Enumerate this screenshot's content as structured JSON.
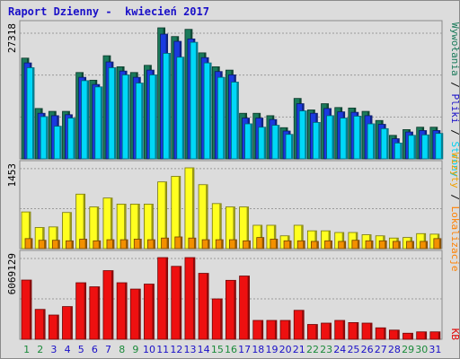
{
  "title": "Raport Dzienny -  kwiecień 2017",
  "chart_data": {
    "type": "bar",
    "categories": [
      "1",
      "2",
      "3",
      "4",
      "5",
      "6",
      "7",
      "8",
      "9",
      "10",
      "11",
      "12",
      "13",
      "14",
      "15",
      "16",
      "17",
      "18",
      "19",
      "20",
      "21",
      "22",
      "23",
      "24",
      "25",
      "26",
      "27",
      "28",
      "29",
      "30",
      "31"
    ],
    "weekend_days": [
      "1",
      "2",
      "8",
      "9",
      "15",
      "16",
      "22",
      "23",
      "29",
      "30"
    ],
    "axis_max_labels": {
      "visits": "27318",
      "locations": "1453",
      "kb": "6069129"
    },
    "side_legend": [
      {
        "name": "Wywołania",
        "color": "#1a7a5a"
      },
      {
        "name": "Pliki",
        "color": "#1a10c8"
      },
      {
        "name": "Strony",
        "color": "#00d0f0"
      },
      {
        "name": "Wizyty",
        "color": "#f0a000"
      },
      {
        "name": "Lokalizacje",
        "color": "#ff8000"
      },
      {
        "name": "KB",
        "color": "#e00000"
      }
    ],
    "colors": {
      "hits": "#1a7a5a",
      "files": "#1a3ae0",
      "pages": "#00d8f8",
      "visits": "#ffff20",
      "locations": "#f39000",
      "kb": "#ee1010",
      "day_weekday": "#1a10c8",
      "day_weekend": "#1a8a3a",
      "grid": "#9a9a9a"
    },
    "panels": [
      {
        "name": "hits-files-pages",
        "ymax": 27318,
        "series": [
          {
            "name": "Wywołania",
            "values": [
              21000,
              10500,
              9900,
              9900,
              18000,
              16400,
              21500,
              19200,
              18000,
              19500,
              27318,
              25500,
              27000,
              22100,
              19200,
              18500,
              9500,
              9500,
              9000,
              6500,
              12600,
              10200,
              11500,
              10700,
              10600,
              9900,
              8000,
              4900,
              6100,
              6600,
              6600
            ]
          },
          {
            "name": "Pliki",
            "values": [
              20000,
              9500,
              9000,
              9200,
              17000,
              15500,
              20200,
              18300,
              17000,
              18500,
              26000,
              24500,
              25000,
              21100,
              18200,
              17500,
              8500,
              8500,
              8200,
              5800,
              11500,
              9500,
              10500,
              9800,
              9700,
              9000,
              7200,
              4200,
              5600,
              5900,
              5900
            ]
          },
          {
            "name": "Strony",
            "values": [
              19000,
              8800,
              6800,
              8500,
              16300,
              15000,
              19000,
              17500,
              15800,
              17500,
              22000,
              21200,
              24300,
              20000,
              17000,
              16000,
              7300,
              6600,
              7000,
              5100,
              10000,
              7600,
              9000,
              8500,
              8900,
              7300,
              6300,
              3300,
              4900,
              5000,
              5300
            ]
          }
        ]
      },
      {
        "name": "visits-locations",
        "ymax": 1453,
        "series": [
          {
            "name": "Wizyty",
            "values": [
              660,
              380,
              390,
              650,
              980,
              750,
              910,
              800,
              800,
              800,
              1200,
              1300,
              1453,
              1150,
              810,
              750,
              750,
              420,
              420,
              230,
              420,
              320,
              320,
              290,
              290,
              250,
              230,
              190,
              200,
              270,
              260
            ]
          },
          {
            "name": "Lokalizacje",
            "values": [
              180,
              150,
              150,
              140,
              170,
              140,
              160,
              160,
              170,
              160,
              190,
              210,
              190,
              160,
              160,
              160,
              140,
              200,
              170,
              140,
              140,
              130,
              140,
              130,
              150,
              140,
              140,
              130,
              130,
              130,
              180
            ]
          }
        ]
      },
      {
        "name": "kb",
        "ymax": 6069129,
        "series": [
          {
            "name": "KB",
            "values": [
              4400000,
              2220000,
              1800000,
              2430000,
              4200000,
              3900000,
              5100000,
              4200000,
              3730000,
              4100000,
              6069129,
              5420000,
              6069129,
              4900000,
              3000000,
              4380000,
              4700000,
              1400000,
              1400000,
              1400000,
              2150000,
              1100000,
              1200000,
              1400000,
              1240000,
              1200000,
              850000,
              680000,
              450000,
              550000,
              550000
            ]
          }
        ]
      }
    ]
  }
}
